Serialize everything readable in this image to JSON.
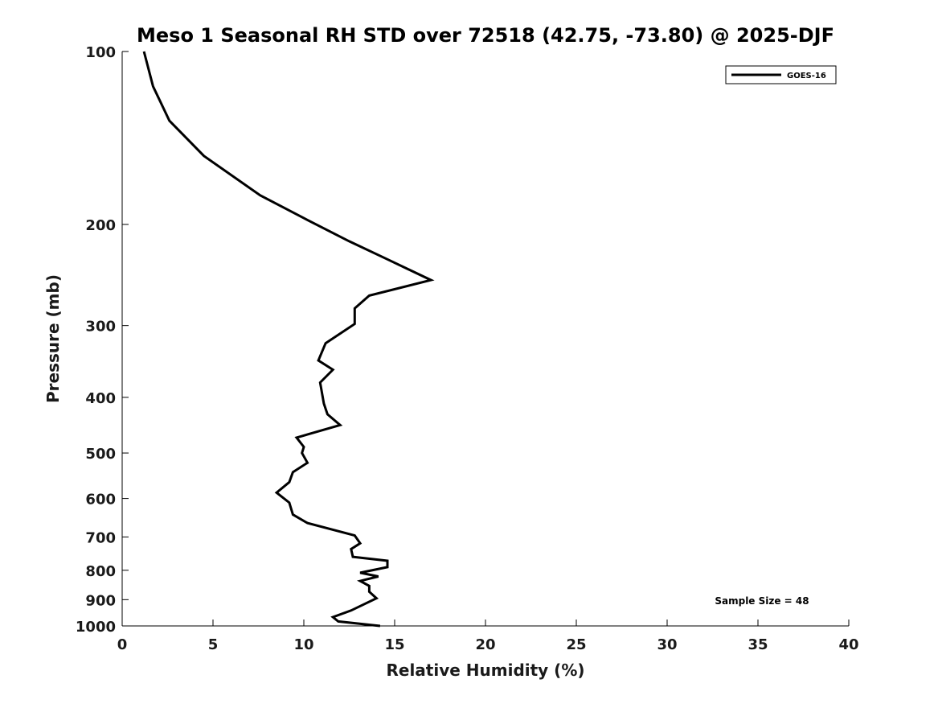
{
  "chart_data": {
    "type": "line",
    "title": "Meso 1 Seasonal RH STD over 72518 (42.75, -73.80) @ 2025-DJF",
    "xlabel": "Relative Humidity (%)",
    "ylabel": "Pressure (mb)",
    "xlim": [
      0,
      40
    ],
    "ylim": [
      1000,
      100
    ],
    "yscale": "log",
    "grid": false,
    "legend_placement": "top-right",
    "x_ticks": [
      0,
      5,
      10,
      15,
      20,
      25,
      30,
      35,
      40
    ],
    "y_ticks": [
      100,
      200,
      300,
      400,
      500,
      600,
      700,
      800,
      900,
      1000
    ],
    "annotation": "Sample Size = 48",
    "line_color": "#000000",
    "series": [
      {
        "name": "GOES-16",
        "points": [
          [
            1.2,
            100
          ],
          [
            1.7,
            115
          ],
          [
            2.6,
            132
          ],
          [
            4.5,
            152
          ],
          [
            7.6,
            178
          ],
          [
            10.0,
            195
          ],
          [
            12.5,
            214
          ],
          [
            14.6,
            230
          ],
          [
            17.0,
            250
          ],
          [
            13.6,
            266
          ],
          [
            12.8,
            280
          ],
          [
            12.8,
            298
          ],
          [
            11.2,
            322
          ],
          [
            10.8,
            345
          ],
          [
            11.6,
            358
          ],
          [
            10.9,
            377
          ],
          [
            11.1,
            410
          ],
          [
            11.3,
            428
          ],
          [
            12.0,
            447
          ],
          [
            9.6,
            470
          ],
          [
            10.0,
            488
          ],
          [
            9.9,
            500
          ],
          [
            10.2,
            520
          ],
          [
            9.4,
            540
          ],
          [
            9.2,
            562
          ],
          [
            8.5,
            586
          ],
          [
            9.2,
            610
          ],
          [
            9.4,
            640
          ],
          [
            10.2,
            662
          ],
          [
            12.8,
            696
          ],
          [
            13.1,
            718
          ],
          [
            12.6,
            735
          ],
          [
            12.7,
            758
          ],
          [
            14.6,
            770
          ],
          [
            14.6,
            790
          ],
          [
            13.1,
            808
          ],
          [
            14.1,
            820
          ],
          [
            13.1,
            835
          ],
          [
            13.6,
            852
          ],
          [
            13.6,
            872
          ],
          [
            14.0,
            895
          ],
          [
            12.6,
            940
          ],
          [
            11.6,
            965
          ],
          [
            11.9,
            982
          ],
          [
            14.2,
            1000
          ]
        ]
      }
    ]
  }
}
